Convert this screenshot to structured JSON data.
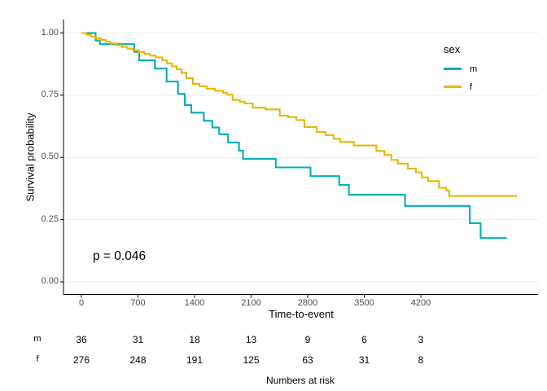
{
  "chart_data": {
    "type": "line",
    "subtype": "kaplan-meier-step-curves",
    "title": "",
    "xlabel": "Time-to-event",
    "ylabel": "Survival probability",
    "annotation": "p = 0.046",
    "x_ticks": [
      0,
      700,
      1400,
      2100,
      2800,
      3500,
      4200
    ],
    "x_tick_labels": [
      "0",
      "700",
      "1400",
      "2100",
      "2800",
      "3500",
      "4200"
    ],
    "y_ticks": [
      0,
      0.25,
      0.5,
      0.75,
      1
    ],
    "y_tick_labels": [
      "0.00",
      "0.25",
      "0.50",
      "0.75",
      "1.00"
    ],
    "xlim": [
      0,
      5650
    ],
    "ylim": [
      0,
      1
    ],
    "grid": "horizontal-major-only",
    "grid_color": "#ebebeb",
    "axis_color": "#000000",
    "legend": {
      "title": "sex",
      "position": "right-top"
    },
    "series": [
      {
        "name": "m",
        "color": "#00AFBB",
        "end_time": 5265,
        "steps": [
          [
            0,
            1.0
          ],
          [
            175,
            0.97
          ],
          [
            230,
            0.955
          ],
          [
            655,
            0.924
          ],
          [
            715,
            0.89
          ],
          [
            910,
            0.857
          ],
          [
            1055,
            0.805
          ],
          [
            1195,
            0.755
          ],
          [
            1280,
            0.71
          ],
          [
            1360,
            0.68
          ],
          [
            1515,
            0.647
          ],
          [
            1620,
            0.62
          ],
          [
            1705,
            0.593
          ],
          [
            1815,
            0.56
          ],
          [
            1950,
            0.527
          ],
          [
            2000,
            0.494
          ],
          [
            2405,
            0.46
          ],
          [
            2835,
            0.425
          ],
          [
            3190,
            0.39
          ],
          [
            3310,
            0.35
          ],
          [
            4005,
            0.305
          ],
          [
            4805,
            0.236
          ],
          [
            4940,
            0.176
          ]
        ]
      },
      {
        "name": "f",
        "color": "#E7B800",
        "end_time": 5390,
        "steps": [
          [
            0,
            1.0
          ],
          [
            60,
            0.993
          ],
          [
            120,
            0.986
          ],
          [
            180,
            0.979
          ],
          [
            240,
            0.972
          ],
          [
            300,
            0.965
          ],
          [
            360,
            0.958
          ],
          [
            430,
            0.951
          ],
          [
            500,
            0.944
          ],
          [
            570,
            0.937
          ],
          [
            640,
            0.93
          ],
          [
            710,
            0.923
          ],
          [
            780,
            0.916
          ],
          [
            850,
            0.909
          ],
          [
            920,
            0.902
          ],
          [
            1000,
            0.89
          ],
          [
            1060,
            0.878
          ],
          [
            1120,
            0.866
          ],
          [
            1180,
            0.854
          ],
          [
            1240,
            0.84
          ],
          [
            1300,
            0.818
          ],
          [
            1380,
            0.795
          ],
          [
            1460,
            0.786
          ],
          [
            1550,
            0.776
          ],
          [
            1650,
            0.768
          ],
          [
            1750,
            0.76
          ],
          [
            1800,
            0.752
          ],
          [
            1870,
            0.731
          ],
          [
            1960,
            0.724
          ],
          [
            2020,
            0.717
          ],
          [
            2120,
            0.7
          ],
          [
            2280,
            0.693
          ],
          [
            2455,
            0.668
          ],
          [
            2560,
            0.662
          ],
          [
            2660,
            0.65
          ],
          [
            2760,
            0.622
          ],
          [
            2910,
            0.602
          ],
          [
            3020,
            0.59
          ],
          [
            3120,
            0.575
          ],
          [
            3200,
            0.562
          ],
          [
            3370,
            0.548
          ],
          [
            3650,
            0.526
          ],
          [
            3750,
            0.51
          ],
          [
            3835,
            0.49
          ],
          [
            3915,
            0.475
          ],
          [
            4040,
            0.455
          ],
          [
            4140,
            0.44
          ],
          [
            4210,
            0.42
          ],
          [
            4290,
            0.405
          ],
          [
            4425,
            0.378
          ],
          [
            4515,
            0.367
          ],
          [
            4550,
            0.345
          ]
        ]
      }
    ],
    "risk_table": {
      "caption": "Numbers at risk",
      "time_points": [
        0,
        700,
        1400,
        2100,
        2800,
        3500,
        4200
      ],
      "rows": [
        {
          "label": "m",
          "counts": [
            36,
            31,
            18,
            13,
            9,
            6,
            3
          ]
        },
        {
          "label": "f",
          "counts": [
            276,
            248,
            191,
            125,
            63,
            31,
            8
          ]
        }
      ]
    }
  }
}
